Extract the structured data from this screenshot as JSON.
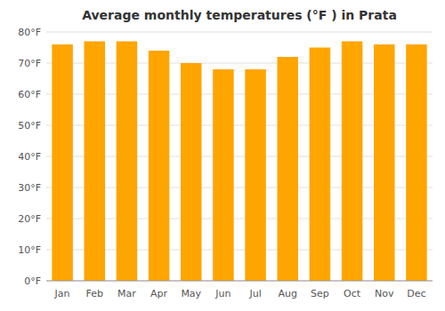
{
  "chart_data": {
    "type": "bar",
    "title": "Average monthly temperatures (°F ) in Prata",
    "categories": [
      "Jan",
      "Feb",
      "Mar",
      "Apr",
      "May",
      "Jun",
      "Jul",
      "Aug",
      "Sep",
      "Oct",
      "Nov",
      "Dec"
    ],
    "values": [
      76,
      77,
      77,
      74,
      70,
      68,
      68,
      72,
      75,
      77,
      76,
      76
    ],
    "color": "#FFA500",
    "ylim": [
      0,
      80
    ],
    "yticks": [
      {
        "value": 0,
        "label": "0°F"
      },
      {
        "value": 10,
        "label": "10°F"
      },
      {
        "value": 20,
        "label": "20°F"
      },
      {
        "value": 30,
        "label": "30°F"
      },
      {
        "value": 40,
        "label": "40°F"
      },
      {
        "value": 50,
        "label": "50°F"
      },
      {
        "value": 60,
        "label": "60°F"
      },
      {
        "value": 70,
        "label": "70°F"
      },
      {
        "value": 80,
        "label": "80°F"
      }
    ],
    "grid": true
  }
}
